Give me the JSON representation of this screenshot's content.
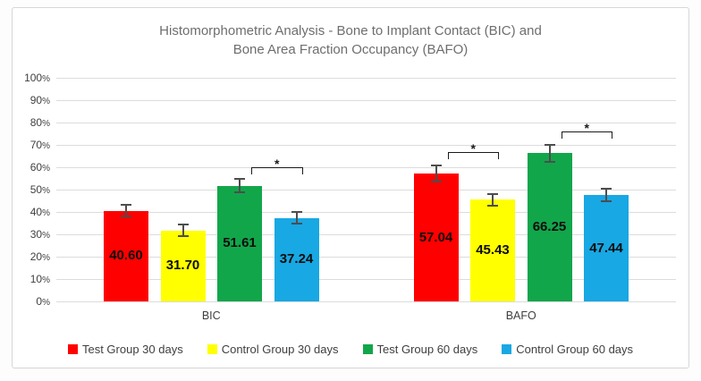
{
  "chart_data": {
    "type": "bar",
    "title_lines": [
      "Histomorphometric Analysis - Bone to Implant Contact (BIC) and",
      "Bone Area Fraction Occupancy (BAFO)"
    ],
    "categories": [
      "BIC",
      "BAFO"
    ],
    "series": [
      {
        "name": "Test Group 30 days",
        "color": "#fe0000",
        "values": [
          40.6,
          57.04
        ],
        "errors": [
          2.6,
          3.6
        ]
      },
      {
        "name": "Control Group 30 days",
        "color": "#ffff00",
        "values": [
          31.7,
          45.43
        ],
        "errors": [
          2.6,
          2.6
        ]
      },
      {
        "name": "Test Group 60 days",
        "color": "#12a64b",
        "values": [
          51.61,
          66.25
        ],
        "errors": [
          3.0,
          3.8
        ]
      },
      {
        "name": "Control Group 60 days",
        "color": "#18a8e3",
        "values": [
          37.24,
          47.44
        ],
        "errors": [
          2.6,
          2.8
        ]
      }
    ],
    "value_labels": [
      [
        "40.60",
        "57.04"
      ],
      [
        "31.70",
        "45.43"
      ],
      [
        "51.61",
        "66.25"
      ],
      [
        "37.24",
        "47.44"
      ]
    ],
    "ylim": [
      0,
      100
    ],
    "ystep": 10,
    "tick_suffix": "%",
    "grid": true,
    "legend_position": "bottom",
    "significance": [
      {
        "category": 0,
        "between": [
          2,
          3
        ],
        "height_pct": 60,
        "label": "*"
      },
      {
        "category": 1,
        "between": [
          0,
          1
        ],
        "height_pct": 67,
        "label": "*"
      },
      {
        "category": 1,
        "between": [
          2,
          3
        ],
        "height_pct": 76,
        "label": "*"
      }
    ],
    "colors": {
      "gridline": "#dcdcdc",
      "axis_text": "#3f3f3f",
      "title_text": "#6e6e6e",
      "error_bar": "#4d4d4d",
      "bracket": "#1a1a1a"
    }
  }
}
